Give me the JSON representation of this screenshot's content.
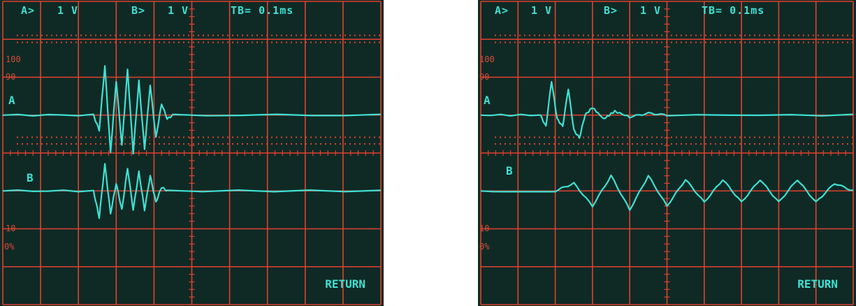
{
  "colors": {
    "grid": "#e0402f",
    "trace": "#3fe0d3",
    "screen": "#0f2a25"
  },
  "scopes": [
    {
      "ch_a_label": "A>",
      "ch_a_volts": "1 V",
      "ch_b_label": "B>",
      "ch_b_volts": "1 V",
      "timebase": "TB= 0.1ms",
      "ref_100": "100",
      "ref_90": "90",
      "ref_10": "10",
      "ref_0": "0%",
      "trace_a_label": "A",
      "trace_b_label": "B",
      "return_label": "RETURN"
    },
    {
      "ch_a_label": "A>",
      "ch_a_volts": "1 V",
      "ch_b_label": "B>",
      "ch_b_volts": "1 V",
      "timebase": "TB= 0.1ms",
      "ref_100": "100",
      "ref_90": "90",
      "ref_10": "10",
      "ref_0": "0%",
      "trace_a_label": "A",
      "trace_b_label": "B",
      "return_label": "RETURN"
    }
  ],
  "chart_data": [
    {
      "type": "line",
      "grid": true,
      "xlim": [
        0,
        10
      ],
      "ylim": [
        -4,
        4
      ],
      "series": [
        {
          "x": [
            0,
            2.4,
            2.55,
            2.7,
            2.85,
            3.0,
            3.15,
            3.3,
            3.45,
            3.6,
            3.75,
            3.9,
            4.05,
            4.2,
            4.35,
            4.5,
            10
          ],
          "y": [
            1.0,
            1.0,
            0.6,
            2.3,
            0.0,
            1.9,
            0.2,
            2.2,
            0.0,
            1.9,
            0.1,
            1.8,
            0.4,
            1.3,
            0.9,
            1.0,
            1.0
          ]
        },
        {
          "x": [
            0,
            2.4,
            2.55,
            2.7,
            2.85,
            3.0,
            3.15,
            3.3,
            3.45,
            3.6,
            3.75,
            3.9,
            4.05,
            4.2,
            4.35,
            10
          ],
          "y": [
            -1.0,
            -1.0,
            -1.7,
            -0.3,
            -1.6,
            -0.8,
            -1.5,
            -0.4,
            -1.5,
            -0.5,
            -1.5,
            -0.6,
            -1.3,
            -0.9,
            -1.0,
            -1.0
          ]
        }
      ]
    },
    {
      "type": "line",
      "grid": true,
      "xlim": [
        0,
        10
      ],
      "ylim": [
        -4,
        4
      ],
      "series": [
        {
          "x": [
            0,
            1.6,
            1.75,
            1.9,
            2.05,
            2.2,
            2.35,
            2.5,
            2.65,
            2.8,
            3.0,
            3.3,
            3.6,
            4.0,
            4.5,
            5.0,
            10
          ],
          "y": [
            1.0,
            1.0,
            0.7,
            1.9,
            0.9,
            0.7,
            1.7,
            0.6,
            0.4,
            1.0,
            1.2,
            0.9,
            1.1,
            0.95,
            1.05,
            1.0,
            1.0
          ]
        },
        {
          "x": [
            0,
            2.0,
            2.5,
            3.0,
            3.5,
            4.0,
            4.5,
            5.0,
            5.5,
            6.0,
            6.5,
            7.0,
            7.5,
            8.0,
            8.5,
            9.0,
            9.5,
            10
          ],
          "y": [
            -1.0,
            -1.0,
            -0.8,
            -1.4,
            -0.6,
            -1.5,
            -0.6,
            -1.4,
            -0.7,
            -1.3,
            -0.7,
            -1.3,
            -0.7,
            -1.3,
            -0.7,
            -1.3,
            -0.8,
            -1.0
          ]
        }
      ]
    }
  ]
}
